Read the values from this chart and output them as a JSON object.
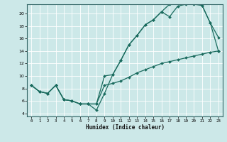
{
  "bg_color": "#cce8e8",
  "grid_color": "#b0d4d4",
  "line_color": "#1a6b5e",
  "xlabel": "Humidex (Indice chaleur)",
  "ylim": [
    3.5,
    21.5
  ],
  "xlim": [
    -0.5,
    23.5
  ],
  "yticks": [
    4,
    6,
    8,
    10,
    12,
    14,
    16,
    18,
    20
  ],
  "xticks": [
    0,
    1,
    2,
    3,
    4,
    5,
    6,
    7,
    8,
    9,
    10,
    11,
    12,
    13,
    14,
    15,
    16,
    17,
    18,
    19,
    20,
    21,
    22,
    23
  ],
  "line1_x": [
    0,
    1,
    2,
    3,
    4,
    5,
    6,
    7,
    8,
    9,
    10,
    11,
    12,
    13,
    14,
    15,
    16,
    17,
    18,
    19,
    20,
    21,
    22,
    23
  ],
  "line1_y": [
    8.5,
    7.5,
    7.2,
    8.5,
    6.2,
    6.0,
    5.5,
    5.5,
    4.5,
    7.2,
    10.2,
    12.5,
    15.0,
    16.5,
    18.2,
    19.0,
    20.3,
    19.5,
    21.2,
    21.5,
    21.5,
    21.3,
    18.5,
    16.2
  ],
  "line2_x": [
    0,
    1,
    2,
    3,
    4,
    5,
    6,
    7,
    8,
    9,
    10,
    11,
    12,
    13,
    14,
    15,
    16,
    17,
    18,
    19,
    20,
    21,
    22,
    23
  ],
  "line2_y": [
    8.5,
    7.5,
    7.2,
    8.5,
    6.2,
    6.0,
    5.5,
    5.5,
    5.5,
    10.0,
    10.2,
    12.5,
    15.0,
    16.5,
    18.2,
    19.0,
    20.3,
    21.5,
    21.8,
    22.0,
    22.0,
    21.3,
    18.5,
    14.0
  ],
  "line3_x": [
    0,
    1,
    2,
    3,
    4,
    5,
    6,
    7,
    8,
    9,
    10,
    11,
    12,
    13,
    14,
    15,
    16,
    17,
    18,
    19,
    20,
    21,
    22,
    23
  ],
  "line3_y": [
    8.5,
    7.5,
    7.2,
    8.5,
    6.2,
    6.0,
    5.5,
    5.5,
    5.5,
    8.5,
    8.8,
    9.2,
    9.8,
    10.5,
    11.0,
    11.5,
    12.0,
    12.3,
    12.6,
    12.9,
    13.2,
    13.5,
    13.8,
    14.0
  ]
}
